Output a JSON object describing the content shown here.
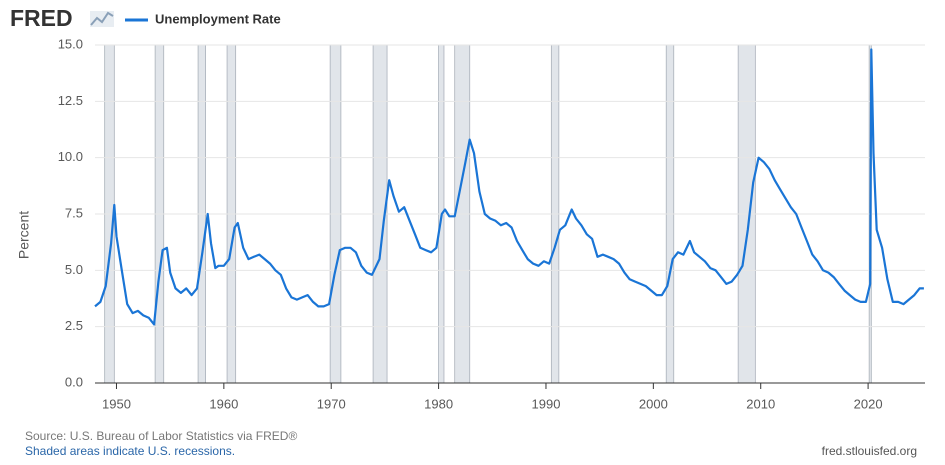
{
  "logo": "FRED",
  "chart_data": {
    "type": "line",
    "y_label": "Percent",
    "source": "Source: U.S. Bureau of Labor Statistics via FRED®",
    "note": "Shaded areas indicate U.S. recessions.",
    "site": "fred.stlouisfed.org",
    "xlim": [
      1948,
      2025.3
    ],
    "xticks": [
      1950,
      1960,
      1970,
      1980,
      1990,
      2000,
      2010,
      2020
    ],
    "ylim": [
      0,
      15
    ],
    "yticks": [
      {
        "value": 0,
        "label": "0.0"
      },
      2.5,
      {
        "value": 5,
        "label": "5.0"
      },
      7.5,
      {
        "value": 10,
        "label": "10.0"
      },
      12.5,
      {
        "value": 15,
        "label": "15.0"
      }
    ],
    "grid": true,
    "recessions": [
      [
        1948.9,
        1949.8
      ],
      [
        1953.6,
        1954.4
      ],
      [
        1957.6,
        1958.3
      ],
      [
        1960.3,
        1961.1
      ],
      [
        1969.9,
        1970.9
      ],
      [
        1973.9,
        1975.2
      ],
      [
        1980.0,
        1980.5
      ],
      [
        1981.5,
        1982.9
      ],
      [
        1990.5,
        1991.2
      ],
      [
        2001.2,
        2001.9
      ],
      [
        2007.9,
        2009.5
      ],
      [
        2020.1,
        2020.3
      ]
    ],
    "x": [
      1948.0,
      1948.5,
      1949.0,
      1949.5,
      1949.8,
      1950.0,
      1950.5,
      1951.0,
      1951.5,
      1952.0,
      1952.5,
      1953.0,
      1953.5,
      1953.9,
      1954.3,
      1954.7,
      1955.0,
      1955.5,
      1956.0,
      1956.5,
      1957.0,
      1957.5,
      1958.0,
      1958.5,
      1958.8,
      1959.2,
      1959.5,
      1960.0,
      1960.5,
      1961.0,
      1961.3,
      1961.8,
      1962.3,
      1962.8,
      1963.3,
      1963.8,
      1964.3,
      1964.8,
      1965.3,
      1965.8,
      1966.3,
      1966.8,
      1967.3,
      1967.8,
      1968.3,
      1968.8,
      1969.3,
      1969.8,
      1970.3,
      1970.8,
      1971.3,
      1971.8,
      1972.3,
      1972.8,
      1973.3,
      1973.8,
      1974.5,
      1974.9,
      1975.4,
      1975.8,
      1976.3,
      1976.8,
      1977.3,
      1977.8,
      1978.3,
      1978.8,
      1979.3,
      1979.8,
      1980.3,
      1980.6,
      1981.0,
      1981.5,
      1982.0,
      1982.5,
      1982.9,
      1983.3,
      1983.8,
      1984.3,
      1984.8,
      1985.3,
      1985.8,
      1986.3,
      1986.8,
      1987.3,
      1987.8,
      1988.3,
      1988.8,
      1989.3,
      1989.8,
      1990.3,
      1990.8,
      1991.3,
      1991.8,
      1992.4,
      1992.8,
      1993.3,
      1993.8,
      1994.3,
      1994.8,
      1995.3,
      1995.8,
      1996.3,
      1996.8,
      1997.3,
      1997.8,
      1998.3,
      1998.8,
      1999.3,
      1999.8,
      2000.3,
      2000.8,
      2001.3,
      2001.8,
      2002.3,
      2002.8,
      2003.4,
      2003.8,
      2004.3,
      2004.8,
      2005.3,
      2005.8,
      2006.3,
      2006.8,
      2007.3,
      2007.8,
      2008.3,
      2008.8,
      2009.3,
      2009.8,
      2010.3,
      2010.8,
      2011.3,
      2011.8,
      2012.3,
      2012.8,
      2013.3,
      2013.8,
      2014.3,
      2014.8,
      2015.3,
      2015.8,
      2016.3,
      2016.8,
      2017.3,
      2017.8,
      2018.3,
      2018.8,
      2019.3,
      2019.8,
      2020.2,
      2020.3,
      2020.5,
      2020.8,
      2021.3,
      2021.8,
      2022.3,
      2022.8,
      2023.3,
      2023.8,
      2024.3,
      2024.8,
      2025.2
    ],
    "series": [
      {
        "name": "Unemployment Rate",
        "color": "#1a75d6",
        "values": [
          3.4,
          3.6,
          4.3,
          6.2,
          7.9,
          6.5,
          5.0,
          3.5,
          3.1,
          3.2,
          3.0,
          2.9,
          2.6,
          4.5,
          5.9,
          6.0,
          4.9,
          4.2,
          4.0,
          4.2,
          3.9,
          4.2,
          5.8,
          7.5,
          6.2,
          5.1,
          5.2,
          5.2,
          5.5,
          6.9,
          7.1,
          6.0,
          5.5,
          5.6,
          5.7,
          5.5,
          5.3,
          5.0,
          4.8,
          4.2,
          3.8,
          3.7,
          3.8,
          3.9,
          3.6,
          3.4,
          3.4,
          3.5,
          4.8,
          5.9,
          6.0,
          6.0,
          5.8,
          5.2,
          4.9,
          4.8,
          5.5,
          7.2,
          9.0,
          8.3,
          7.6,
          7.8,
          7.2,
          6.6,
          6.0,
          5.9,
          5.8,
          6.0,
          7.5,
          7.7,
          7.4,
          7.4,
          8.6,
          9.8,
          10.8,
          10.2,
          8.5,
          7.5,
          7.3,
          7.2,
          7.0,
          7.1,
          6.9,
          6.3,
          5.9,
          5.5,
          5.3,
          5.2,
          5.4,
          5.3,
          6.0,
          6.8,
          7.0,
          7.7,
          7.3,
          7.0,
          6.6,
          6.4,
          5.6,
          5.7,
          5.6,
          5.5,
          5.3,
          4.9,
          4.6,
          4.5,
          4.4,
          4.3,
          4.1,
          3.9,
          3.9,
          4.3,
          5.5,
          5.8,
          5.7,
          6.3,
          5.8,
          5.6,
          5.4,
          5.1,
          5.0,
          4.7,
          4.4,
          4.5,
          4.8,
          5.2,
          6.8,
          8.9,
          10.0,
          9.8,
          9.5,
          9.0,
          8.6,
          8.2,
          7.8,
          7.5,
          6.9,
          6.3,
          5.7,
          5.4,
          5.0,
          4.9,
          4.7,
          4.4,
          4.1,
          3.9,
          3.7,
          3.6,
          3.6,
          4.4,
          14.8,
          10.2,
          6.8,
          6.0,
          4.6,
          3.6,
          3.6,
          3.5,
          3.7,
          3.9,
          4.2,
          4.2
        ]
      }
    ]
  }
}
